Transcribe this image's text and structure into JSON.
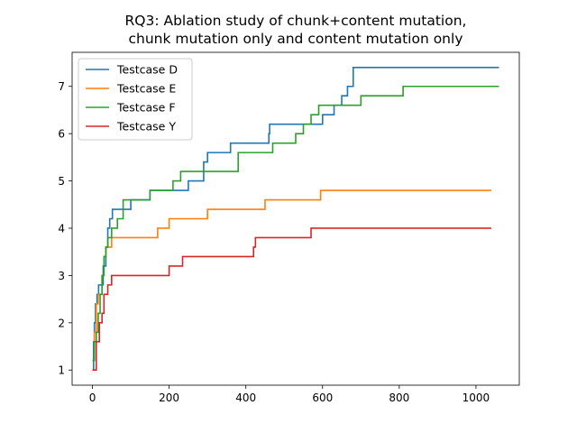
{
  "chart_data": {
    "type": "line",
    "title": [
      "RQ3: Ablation study of chunk+content mutation,",
      "chunk mutation only and content mutation only"
    ],
    "xlabel": "",
    "ylabel": "",
    "xlim": [
      -53,
      1113
    ],
    "ylim": [
      0.68,
      7.72
    ],
    "xticks": [
      0,
      200,
      400,
      600,
      800,
      1000
    ],
    "yticks": [
      1,
      2,
      3,
      4,
      5,
      6,
      7
    ],
    "legend_position": "top-left",
    "grid": false,
    "step": "post",
    "series": [
      {
        "name": "Testcase D",
        "color": "#1f77b4",
        "x": [
          0,
          3,
          5,
          8,
          12,
          16,
          20,
          28,
          35,
          40,
          45,
          52,
          60,
          75,
          100,
          150,
          250,
          290,
          300,
          320,
          360,
          460,
          462,
          465,
          490,
          520,
          555,
          600,
          610,
          630,
          650,
          665,
          680,
          690,
          1060
        ],
        "y": [
          1.0,
          1.6,
          2.0,
          2.4,
          2.6,
          2.8,
          2.8,
          3.2,
          3.6,
          4.0,
          4.2,
          4.4,
          4.4,
          4.4,
          4.6,
          4.8,
          5.0,
          5.4,
          5.6,
          5.6,
          5.8,
          6.0,
          6.2,
          6.2,
          6.2,
          6.2,
          6.2,
          6.4,
          6.4,
          6.6,
          6.8,
          7.0,
          7.4,
          7.4,
          7.4
        ]
      },
      {
        "name": "Testcase E",
        "color": "#ff7f0e",
        "x": [
          0,
          5,
          10,
          15,
          20,
          25,
          30,
          35,
          40,
          50,
          60,
          170,
          200,
          300,
          450,
          595,
          1040
        ],
        "y": [
          1.2,
          1.8,
          2.4,
          2.6,
          2.6,
          3.0,
          3.4,
          3.6,
          3.6,
          3.8,
          3.8,
          4.0,
          4.2,
          4.4,
          4.6,
          4.8,
          4.8
        ]
      },
      {
        "name": "Testcase F",
        "color": "#2ca02c",
        "x": [
          0,
          5,
          10,
          15,
          20,
          25,
          30,
          35,
          40,
          50,
          65,
          80,
          110,
          150,
          210,
          230,
          290,
          330,
          380,
          410,
          470,
          530,
          550,
          570,
          590,
          620,
          650,
          700,
          810,
          1060
        ],
        "y": [
          1.2,
          1.6,
          1.8,
          2.2,
          2.6,
          3.0,
          3.4,
          3.6,
          3.8,
          4.0,
          4.2,
          4.6,
          4.6,
          4.8,
          5.0,
          5.2,
          5.2,
          5.2,
          5.6,
          5.6,
          5.8,
          6.0,
          6.2,
          6.4,
          6.6,
          6.6,
          6.6,
          6.8,
          7.0,
          7.0
        ]
      },
      {
        "name": "Testcase Y",
        "color": "#d62728",
        "x": [
          0,
          10,
          18,
          25,
          30,
          40,
          50,
          60,
          150,
          200,
          235,
          420,
          425,
          430,
          570,
          1040
        ],
        "y": [
          1.0,
          1.6,
          2.0,
          2.2,
          2.6,
          2.8,
          3.0,
          3.0,
          3.0,
          3.2,
          3.4,
          3.6,
          3.8,
          3.8,
          4.0,
          4.0
        ]
      }
    ]
  }
}
